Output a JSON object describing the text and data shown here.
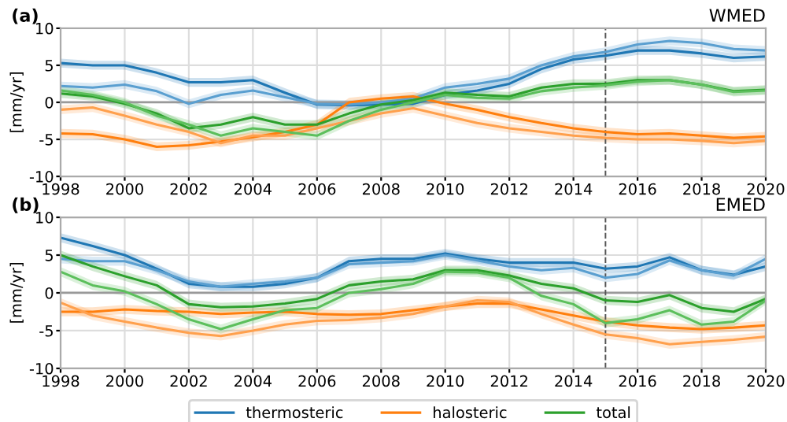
{
  "chart_data": [
    {
      "type": "line",
      "title": "(a)",
      "subtitle": "WMED",
      "ylabel": "[mm/yr]",
      "x": [
        1998,
        1999,
        2000,
        2001,
        2002,
        2003,
        2004,
        2005,
        2006,
        2007,
        2008,
        2009,
        2010,
        2011,
        2012,
        2013,
        2014,
        2015,
        2016,
        2017,
        2018,
        2019,
        2020
      ],
      "xlim": [
        1998,
        2020
      ],
      "xticks": [
        1998,
        2000,
        2002,
        2004,
        2006,
        2008,
        2010,
        2012,
        2014,
        2016,
        2018,
        2020
      ],
      "ylim": [
        -10,
        10
      ],
      "yticks": [
        -10,
        -5,
        0,
        5,
        10
      ],
      "grid": true,
      "ref_lines": [
        {
          "axis": "y",
          "value": 0,
          "color": "#999999",
          "line_style": "solid"
        },
        {
          "axis": "x",
          "value": 2015,
          "color": "#555555",
          "line_style": "dashed"
        }
      ],
      "series": [
        {
          "color": "#1f77b4",
          "values": [
            5.3,
            5.0,
            5.0,
            4.0,
            2.7,
            2.7,
            3.0,
            1.3,
            -0.3,
            -0.4,
            -0.3,
            -0.2,
            1.0,
            1.6,
            2.5,
            4.5,
            5.8,
            6.3,
            7.0,
            7.0,
            6.6,
            6.0,
            6.2
          ],
          "lower": [
            4.7,
            4.4,
            4.4,
            3.4,
            2.1,
            2.1,
            2.4,
            0.7,
            -0.9,
            -1.0,
            -0.9,
            -0.8,
            0.4,
            1.0,
            1.9,
            3.9,
            5.2,
            5.7,
            6.4,
            6.4,
            6.0,
            5.4,
            5.6
          ],
          "upper": [
            5.9,
            5.6,
            5.6,
            4.6,
            3.3,
            3.3,
            3.6,
            1.9,
            0.3,
            0.2,
            0.3,
            0.4,
            1.6,
            2.2,
            3.1,
            5.1,
            6.4,
            6.9,
            7.6,
            7.6,
            7.2,
            6.6,
            6.8
          ]
        },
        {
          "color": "#5a9fd0",
          "values": [
            2.2,
            2.0,
            2.4,
            1.5,
            -0.2,
            1.0,
            1.6,
            0.7,
            -0.2,
            -0.3,
            0.0,
            0.5,
            2.0,
            2.5,
            3.2,
            5.0,
            6.2,
            6.8,
            7.8,
            8.3,
            8.0,
            7.2,
            7.0
          ],
          "lower": [
            1.6,
            1.4,
            1.8,
            0.9,
            -0.8,
            0.4,
            1.0,
            0.1,
            -0.8,
            -0.9,
            -0.6,
            -0.1,
            1.4,
            1.9,
            2.6,
            4.4,
            5.6,
            6.2,
            7.2,
            7.7,
            7.4,
            6.6,
            6.4
          ],
          "upper": [
            2.8,
            2.6,
            3.0,
            2.1,
            0.4,
            1.6,
            2.2,
            1.3,
            0.4,
            0.3,
            0.6,
            1.1,
            2.6,
            3.1,
            3.8,
            5.6,
            6.8,
            7.4,
            8.4,
            8.9,
            8.6,
            7.8,
            7.6
          ]
        },
        {
          "color": "#ff7f0e",
          "values": [
            -4.2,
            -4.3,
            -5.0,
            -6.0,
            -5.8,
            -5.3,
            -4.7,
            -4.0,
            -3.0,
            0.0,
            0.5,
            0.8,
            -0.2,
            -1.0,
            -2.0,
            -2.8,
            -3.5,
            -4.0,
            -4.3,
            -4.2,
            -4.5,
            -4.8,
            -4.6
          ],
          "lower": [
            -4.8,
            -4.9,
            -5.6,
            -6.6,
            -6.4,
            -5.9,
            -5.3,
            -4.6,
            -3.6,
            -0.6,
            -0.1,
            0.2,
            -0.8,
            -1.6,
            -2.6,
            -3.4,
            -4.1,
            -4.6,
            -4.9,
            -4.8,
            -5.1,
            -5.4,
            -5.2
          ],
          "upper": [
            -3.6,
            -3.7,
            -4.4,
            -5.4,
            -5.2,
            -4.7,
            -4.1,
            -3.4,
            -2.4,
            0.6,
            1.1,
            1.4,
            0.4,
            -0.4,
            -1.4,
            -2.2,
            -2.9,
            -3.4,
            -3.7,
            -3.6,
            -3.9,
            -4.2,
            -4.0
          ]
        },
        {
          "color": "#ffa04d",
          "values": [
            -1.0,
            -0.7,
            -1.8,
            -3.0,
            -4.0,
            -5.5,
            -4.5,
            -4.5,
            -3.5,
            -2.5,
            -1.5,
            -0.8,
            -1.8,
            -2.8,
            -3.5,
            -4.0,
            -4.5,
            -4.8,
            -5.0,
            -5.0,
            -5.2,
            -5.5,
            -5.2
          ],
          "lower": [
            -1.6,
            -1.3,
            -2.4,
            -3.6,
            -4.6,
            -6.1,
            -5.1,
            -5.1,
            -4.1,
            -3.1,
            -2.1,
            -1.4,
            -2.4,
            -3.4,
            -4.1,
            -4.6,
            -5.1,
            -5.4,
            -5.6,
            -5.6,
            -5.8,
            -6.1,
            -5.8
          ],
          "upper": [
            -0.4,
            -0.1,
            -1.2,
            -2.4,
            -3.4,
            -4.9,
            -3.9,
            -3.9,
            -2.9,
            -1.9,
            -0.9,
            -0.2,
            -1.2,
            -2.2,
            -2.9,
            -3.4,
            -3.9,
            -4.2,
            -4.4,
            -4.4,
            -4.6,
            -4.9,
            -4.6
          ]
        },
        {
          "color": "#2ca02c",
          "values": [
            1.2,
            0.8,
            -0.2,
            -1.5,
            -3.5,
            -3.0,
            -2.0,
            -3.0,
            -3.0,
            -1.5,
            -0.3,
            0.3,
            1.3,
            1.0,
            0.8,
            2.0,
            2.5,
            2.5,
            3.0,
            3.0,
            2.4,
            1.5,
            1.7
          ],
          "lower": [
            0.6,
            0.2,
            -0.8,
            -2.1,
            -4.1,
            -3.6,
            -2.6,
            -3.6,
            -3.6,
            -2.1,
            -0.9,
            -0.3,
            0.7,
            0.4,
            0.2,
            1.4,
            1.9,
            1.9,
            2.4,
            2.4,
            1.8,
            0.9,
            1.1
          ],
          "upper": [
            1.8,
            1.4,
            0.4,
            -0.9,
            -2.9,
            -2.4,
            -1.4,
            -2.4,
            -2.4,
            -0.9,
            0.3,
            0.9,
            1.9,
            1.6,
            1.4,
            2.6,
            3.1,
            3.1,
            3.6,
            3.6,
            3.0,
            2.1,
            2.3
          ]
        },
        {
          "color": "#5cbf5c",
          "values": [
            1.6,
            1.0,
            0.0,
            -1.8,
            -3.0,
            -4.5,
            -3.5,
            -4.0,
            -4.5,
            -2.5,
            -1.0,
            0.0,
            1.0,
            0.6,
            0.5,
            1.5,
            2.0,
            2.3,
            2.8,
            3.0,
            2.4,
            1.4,
            1.6
          ],
          "lower": [
            1.0,
            0.4,
            -0.6,
            -2.4,
            -3.6,
            -5.1,
            -4.1,
            -4.6,
            -5.1,
            -3.1,
            -1.6,
            -0.6,
            0.4,
            0.0,
            -0.1,
            0.9,
            1.4,
            1.7,
            2.2,
            2.4,
            1.8,
            0.8,
            1.0
          ],
          "upper": [
            2.2,
            1.6,
            0.6,
            -1.2,
            -2.4,
            -3.9,
            -2.9,
            -3.4,
            -3.9,
            -1.9,
            -0.4,
            0.6,
            1.6,
            1.2,
            1.1,
            2.1,
            2.6,
            2.9,
            3.4,
            3.6,
            3.0,
            2.0,
            2.2
          ]
        }
      ]
    },
    {
      "type": "line",
      "title": "(b)",
      "subtitle": "EMED",
      "ylabel": "[mm/yr]",
      "legend": "bottom",
      "x": [
        1998,
        1999,
        2000,
        2001,
        2002,
        2003,
        2004,
        2005,
        2006,
        2007,
        2008,
        2009,
        2010,
        2011,
        2012,
        2013,
        2014,
        2015,
        2016,
        2017,
        2018,
        2019,
        2020
      ],
      "xlim": [
        1998,
        2020
      ],
      "xticks": [
        1998,
        2000,
        2002,
        2004,
        2006,
        2008,
        2010,
        2012,
        2014,
        2016,
        2018,
        2020
      ],
      "ylim": [
        -10,
        10
      ],
      "yticks": [
        -10,
        -5,
        0,
        5,
        10
      ],
      "grid": true,
      "ref_lines": [
        {
          "axis": "y",
          "value": 0,
          "color": "#999999",
          "line_style": "solid"
        },
        {
          "axis": "x",
          "value": 2015,
          "color": "#555555",
          "line_style": "dashed"
        }
      ],
      "series": [
        {
          "name": "thermosteric",
          "color": "#1f77b4",
          "values": [
            7.3,
            6.2,
            5.0,
            3.2,
            1.2,
            0.8,
            0.8,
            1.2,
            2.0,
            4.2,
            4.5,
            4.5,
            5.2,
            4.5,
            4.0,
            4.0,
            4.0,
            3.2,
            3.5,
            4.7,
            3.0,
            2.4,
            3.5
          ],
          "lower": [
            6.7,
            5.6,
            4.4,
            2.6,
            0.6,
            0.2,
            0.2,
            0.6,
            1.4,
            3.6,
            3.9,
            3.9,
            4.6,
            3.9,
            3.4,
            3.4,
            3.4,
            2.6,
            2.9,
            4.1,
            2.4,
            1.8,
            2.9
          ],
          "upper": [
            7.9,
            6.8,
            5.6,
            3.8,
            1.8,
            1.4,
            1.4,
            1.8,
            2.6,
            4.8,
            5.1,
            5.1,
            5.8,
            5.1,
            4.6,
            4.6,
            4.6,
            3.8,
            4.1,
            5.3,
            3.6,
            3.0,
            4.1
          ]
        },
        {
          "color": "#5a9fd0",
          "values": [
            4.5,
            4.2,
            4.2,
            3.0,
            1.5,
            0.8,
            1.2,
            1.5,
            2.0,
            3.8,
            4.0,
            4.2,
            5.0,
            4.3,
            3.5,
            3.0,
            3.3,
            2.0,
            2.5,
            4.3,
            3.0,
            2.3,
            4.5
          ],
          "lower": [
            3.9,
            3.6,
            3.6,
            2.4,
            0.9,
            0.2,
            0.6,
            0.9,
            1.4,
            3.2,
            3.4,
            3.6,
            4.4,
            3.7,
            2.9,
            2.4,
            2.7,
            1.4,
            1.9,
            3.7,
            2.4,
            1.7,
            3.9
          ],
          "upper": [
            5.1,
            4.8,
            4.8,
            3.6,
            2.1,
            1.4,
            1.8,
            2.1,
            2.6,
            4.4,
            4.6,
            4.8,
            5.6,
            4.9,
            4.1,
            3.6,
            3.9,
            2.6,
            3.1,
            4.9,
            3.6,
            2.9,
            5.1
          ]
        },
        {
          "name": "halosteric",
          "color": "#ff7f0e",
          "values": [
            -2.5,
            -2.5,
            -2.2,
            -2.4,
            -2.5,
            -2.8,
            -2.6,
            -2.5,
            -2.8,
            -2.9,
            -2.8,
            -2.3,
            -1.8,
            -1.4,
            -1.4,
            -2.2,
            -3.0,
            -3.8,
            -4.3,
            -4.6,
            -4.8,
            -4.6,
            -4.3
          ],
          "lower": [
            -3.1,
            -3.1,
            -2.8,
            -3.0,
            -3.1,
            -3.4,
            -3.2,
            -3.1,
            -3.4,
            -3.5,
            -3.4,
            -2.9,
            -2.4,
            -2.0,
            -2.0,
            -2.8,
            -3.6,
            -4.4,
            -4.9,
            -5.2,
            -5.4,
            -5.2,
            -4.9
          ],
          "upper": [
            -1.9,
            -1.9,
            -1.6,
            -1.8,
            -1.9,
            -2.2,
            -2.0,
            -1.9,
            -2.2,
            -2.3,
            -2.2,
            -1.7,
            -1.2,
            -0.8,
            -0.8,
            -1.6,
            -2.4,
            -3.2,
            -3.7,
            -4.0,
            -4.2,
            -4.0,
            -3.7
          ]
        },
        {
          "color": "#ffa04d",
          "values": [
            -1.3,
            -3.0,
            -3.8,
            -4.6,
            -5.3,
            -5.7,
            -5.0,
            -4.2,
            -3.7,
            -3.6,
            -3.3,
            -2.8,
            -1.8,
            -1.0,
            -1.2,
            -2.8,
            -4.2,
            -5.5,
            -6.0,
            -6.8,
            -6.5,
            -6.2,
            -5.8
          ],
          "lower": [
            -1.9,
            -3.6,
            -4.4,
            -5.2,
            -5.9,
            -6.3,
            -5.6,
            -4.8,
            -4.3,
            -4.2,
            -3.9,
            -3.4,
            -2.4,
            -1.6,
            -1.8,
            -3.4,
            -4.8,
            -6.1,
            -6.6,
            -7.4,
            -7.1,
            -6.8,
            -6.4
          ],
          "upper": [
            -0.7,
            -2.4,
            -3.2,
            -4.0,
            -4.7,
            -5.1,
            -4.4,
            -3.6,
            -3.1,
            -3.0,
            -2.7,
            -2.2,
            -1.2,
            -0.4,
            -0.6,
            -2.2,
            -3.6,
            -4.9,
            -5.4,
            -6.2,
            -5.9,
            -5.6,
            -5.2
          ]
        },
        {
          "name": "total",
          "color": "#2ca02c",
          "values": [
            5.0,
            3.5,
            2.2,
            1.0,
            -1.5,
            -1.9,
            -1.8,
            -1.4,
            -0.8,
            1.0,
            1.5,
            1.8,
            3.0,
            3.0,
            2.3,
            1.2,
            0.6,
            -1.0,
            -1.2,
            -0.3,
            -2.0,
            -2.5,
            -0.8
          ],
          "lower": [
            4.4,
            2.9,
            1.6,
            0.4,
            -2.1,
            -2.5,
            -2.4,
            -2.0,
            -1.4,
            0.4,
            0.9,
            1.2,
            2.4,
            2.4,
            1.7,
            0.6,
            0.0,
            -1.6,
            -1.8,
            -0.9,
            -2.6,
            -3.1,
            -1.4
          ],
          "upper": [
            5.6,
            4.1,
            2.8,
            1.6,
            -0.9,
            -1.3,
            -1.2,
            -0.8,
            -0.2,
            1.6,
            2.1,
            2.4,
            3.6,
            3.6,
            2.9,
            1.8,
            1.2,
            -0.4,
            -0.6,
            0.3,
            -1.4,
            -1.9,
            -0.2
          ]
        },
        {
          "color": "#5cbf5c",
          "values": [
            2.8,
            1.0,
            0.2,
            -1.5,
            -3.5,
            -4.8,
            -3.5,
            -2.3,
            -2.0,
            0.0,
            0.5,
            1.2,
            2.8,
            2.7,
            2.0,
            -0.4,
            -1.5,
            -4.0,
            -3.5,
            -2.3,
            -4.2,
            -3.8,
            -1.0
          ],
          "lower": [
            2.2,
            0.4,
            -0.4,
            -2.1,
            -4.1,
            -5.4,
            -4.1,
            -2.9,
            -2.6,
            -0.6,
            -0.1,
            0.6,
            2.2,
            2.1,
            1.4,
            -1.0,
            -2.1,
            -4.6,
            -4.1,
            -2.9,
            -4.8,
            -4.4,
            -1.6
          ],
          "upper": [
            3.4,
            1.6,
            0.8,
            -0.9,
            -2.9,
            -4.2,
            -2.9,
            -1.7,
            -1.4,
            0.6,
            1.1,
            1.8,
            3.4,
            3.3,
            2.6,
            0.2,
            -0.9,
            -3.4,
            -2.9,
            -1.7,
            -3.6,
            -3.2,
            -0.4
          ]
        }
      ]
    }
  ]
}
